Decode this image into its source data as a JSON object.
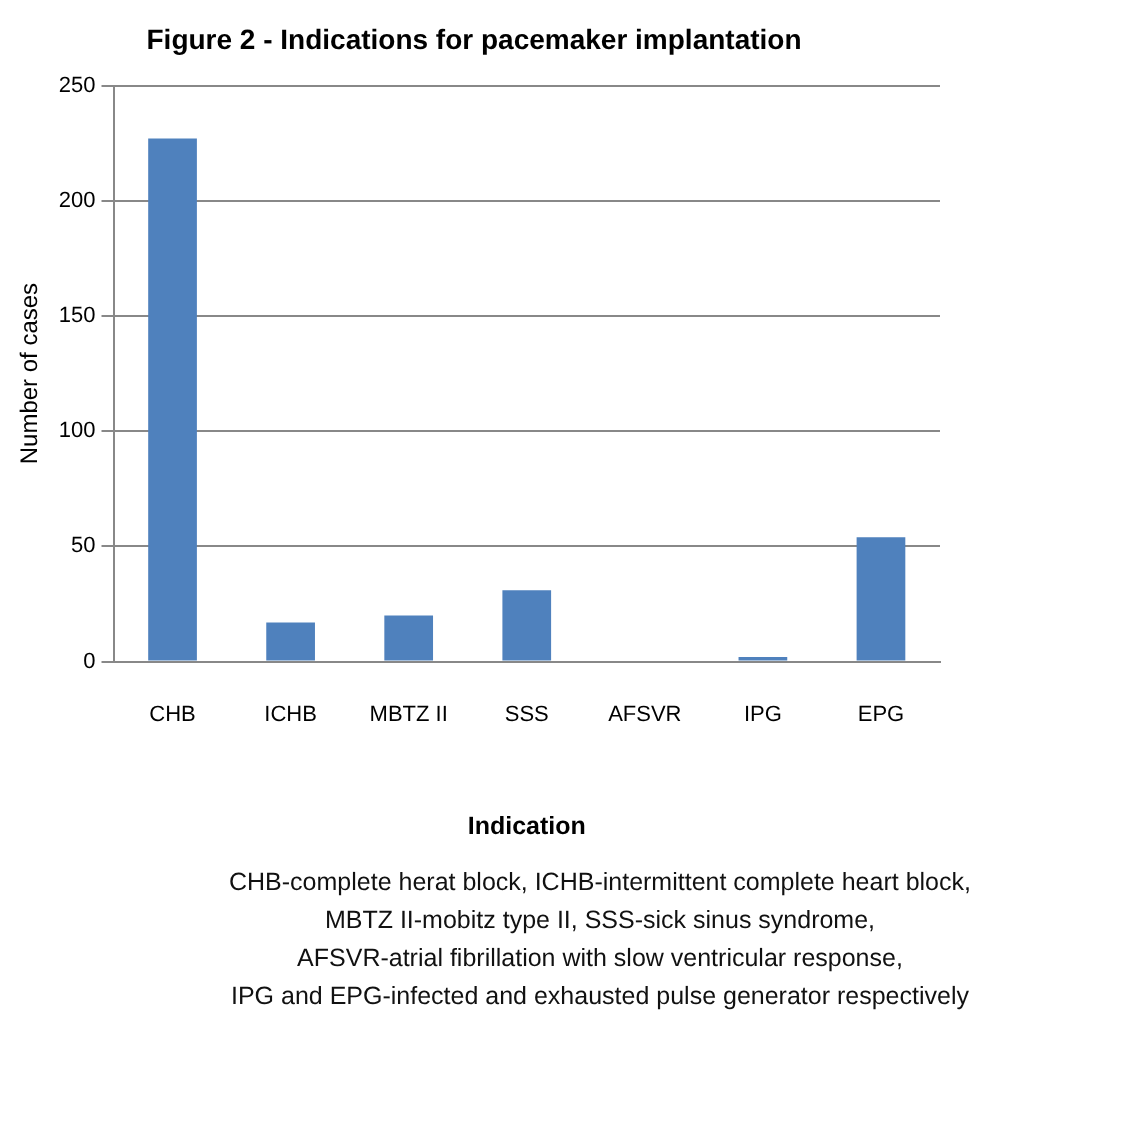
{
  "chart_data": {
    "type": "bar",
    "title": "Figure 2 - Indications for pacemaker implantation",
    "xlabel": "Indication",
    "ylabel": "Number of cases",
    "categories": [
      "CHB",
      "ICHB",
      "MBTZ II",
      "SSS",
      "AFSVR",
      "IPG",
      "EPG"
    ],
    "values": [
      227,
      17,
      20,
      31,
      0,
      2,
      54
    ],
    "color": "#4f81bd",
    "ylim": [
      0,
      250
    ],
    "yticks": [
      0,
      50,
      100,
      150,
      200,
      250
    ],
    "grid": "y",
    "legend": false,
    "annotations": [
      "CHB-complete herat block, ICHB-intermittent complete heart block,",
      "MBTZ II-mobitz type II, SSS-sick sinus syndrome,",
      "AFSVR-atrial fibrillation with slow ventricular response,",
      "IPG and EPG-infected and exhausted pulse generator respectively"
    ]
  }
}
